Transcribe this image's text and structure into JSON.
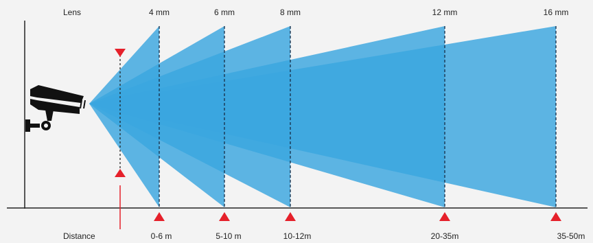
{
  "header_label": "Lens",
  "footer_label": "Distance",
  "lenses": [
    {
      "lens": "4 mm",
      "distance": "0-6 m"
    },
    {
      "lens": "6 mm",
      "distance": "5-10 m"
    },
    {
      "lens": "8 mm",
      "distance": "10-12m"
    },
    {
      "lens": "12 mm",
      "distance": "20-35m"
    },
    {
      "lens": "16 mm",
      "distance": "35-50m"
    }
  ],
  "colors": {
    "beam": "#3aa6df",
    "marker": "#e5202a",
    "line": "#222222",
    "background": "#f3f3f3",
    "camera": "#111111"
  },
  "icons": [
    "cctv-camera-icon",
    "triangle-marker-icon"
  ]
}
